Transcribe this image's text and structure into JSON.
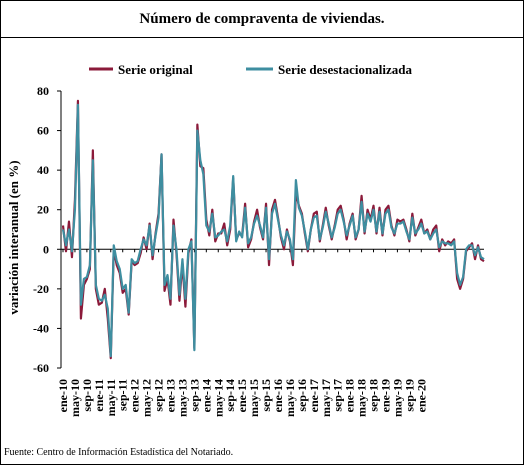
{
  "title": "Número de compraventa de viviendas.",
  "source": "Fuente: Centro de Información Estadística del Notariado.",
  "colors": {
    "original": "#8B1A3A",
    "sa": "#3E8EA0",
    "axis": "#000000"
  },
  "chart_data": {
    "type": "line",
    "title": "Número de compraventa de viviendas.",
    "xlabel": "",
    "ylabel": "variación interanual (en %)",
    "ylim": [
      -60,
      80
    ],
    "yticks": [
      -60,
      -40,
      -20,
      0,
      20,
      40,
      60,
      80
    ],
    "grid": false,
    "legend": "top",
    "x_tick_labels": [
      "ene-10",
      "may-10",
      "sep-10",
      "ene-11",
      "may-11",
      "sep-11",
      "ene-12",
      "may-12",
      "sep-12",
      "ene-13",
      "may-13",
      "sep-13",
      "ene-14",
      "may-14",
      "sep-14",
      "ene-15",
      "may-15",
      "sep-15",
      "ene-16",
      "may-16",
      "sep-16",
      "ene-17",
      "may-17",
      "sep-17",
      "ene-18",
      "may-18",
      "sep-18",
      "ene-19",
      "may-19",
      "sep-19",
      "ene-20"
    ],
    "series": [
      {
        "name": "Serie original",
        "values": [
          12,
          -1,
          14,
          -4,
          25,
          75,
          -35,
          -18,
          -15,
          -10,
          50,
          -20,
          -28,
          -27,
          -20,
          -35,
          -55,
          0,
          -8,
          -12,
          -22,
          -20,
          -33,
          -6,
          -8,
          -7,
          -2,
          6,
          0,
          13,
          -5,
          8,
          18,
          48,
          -21,
          -15,
          -28,
          15,
          -2,
          -26,
          -7,
          -29,
          -2,
          5,
          -50,
          63,
          42,
          41,
          15,
          7,
          20,
          4,
          8,
          8,
          13,
          2,
          10,
          36,
          5,
          8,
          7,
          23,
          1,
          5,
          14,
          20,
          11,
          5,
          23,
          -8,
          20,
          25,
          16,
          6,
          0,
          10,
          4,
          -8,
          29,
          22,
          18,
          8,
          -1,
          10,
          18,
          19,
          4,
          12,
          21,
          12,
          5,
          12,
          20,
          22,
          15,
          5,
          13,
          18,
          5,
          10,
          27,
          8,
          20,
          15,
          22,
          8,
          21,
          7,
          20,
          22,
          12,
          7,
          15,
          14,
          15,
          10,
          4,
          18,
          7,
          11,
          15,
          8,
          10,
          5,
          10,
          12,
          -1,
          5,
          2,
          4,
          3,
          5,
          -15,
          -20,
          -15,
          -1,
          1,
          3,
          -5,
          2,
          -5,
          -6
        ]
      },
      {
        "name": "Serie desestacionalizada",
        "values": [
          10,
          2,
          10,
          -1,
          20,
          73,
          -28,
          -15,
          -14,
          -8,
          45,
          -18,
          -25,
          -26,
          -23,
          -30,
          -54,
          2,
          -6,
          -10,
          -20,
          -18,
          -32,
          -5,
          -7,
          -6,
          0,
          5,
          2,
          12,
          -3,
          7,
          16,
          48,
          -18,
          -13,
          -25,
          12,
          0,
          -23,
          -5,
          -25,
          0,
          4,
          -51,
          60,
          45,
          38,
          12,
          9,
          18,
          6,
          7,
          9,
          10,
          4,
          12,
          37,
          4,
          9,
          6,
          21,
          3,
          6,
          13,
          17,
          12,
          6,
          21,
          -5,
          18,
          23,
          15,
          7,
          2,
          9,
          5,
          -5,
          35,
          21,
          17,
          9,
          0,
          10,
          16,
          17,
          5,
          11,
          19,
          13,
          6,
          11,
          18,
          20,
          14,
          7,
          12,
          17,
          6,
          10,
          24,
          9,
          18,
          14,
          20,
          9,
          19,
          8,
          18,
          20,
          11,
          8,
          13,
          13,
          14,
          9,
          5,
          16,
          8,
          10,
          13,
          8,
          9,
          5,
          8,
          10,
          1,
          4,
          3,
          3,
          2,
          4,
          -12,
          -18,
          -14,
          0,
          2,
          2,
          -3,
          1,
          -4,
          -5
        ]
      }
    ]
  }
}
